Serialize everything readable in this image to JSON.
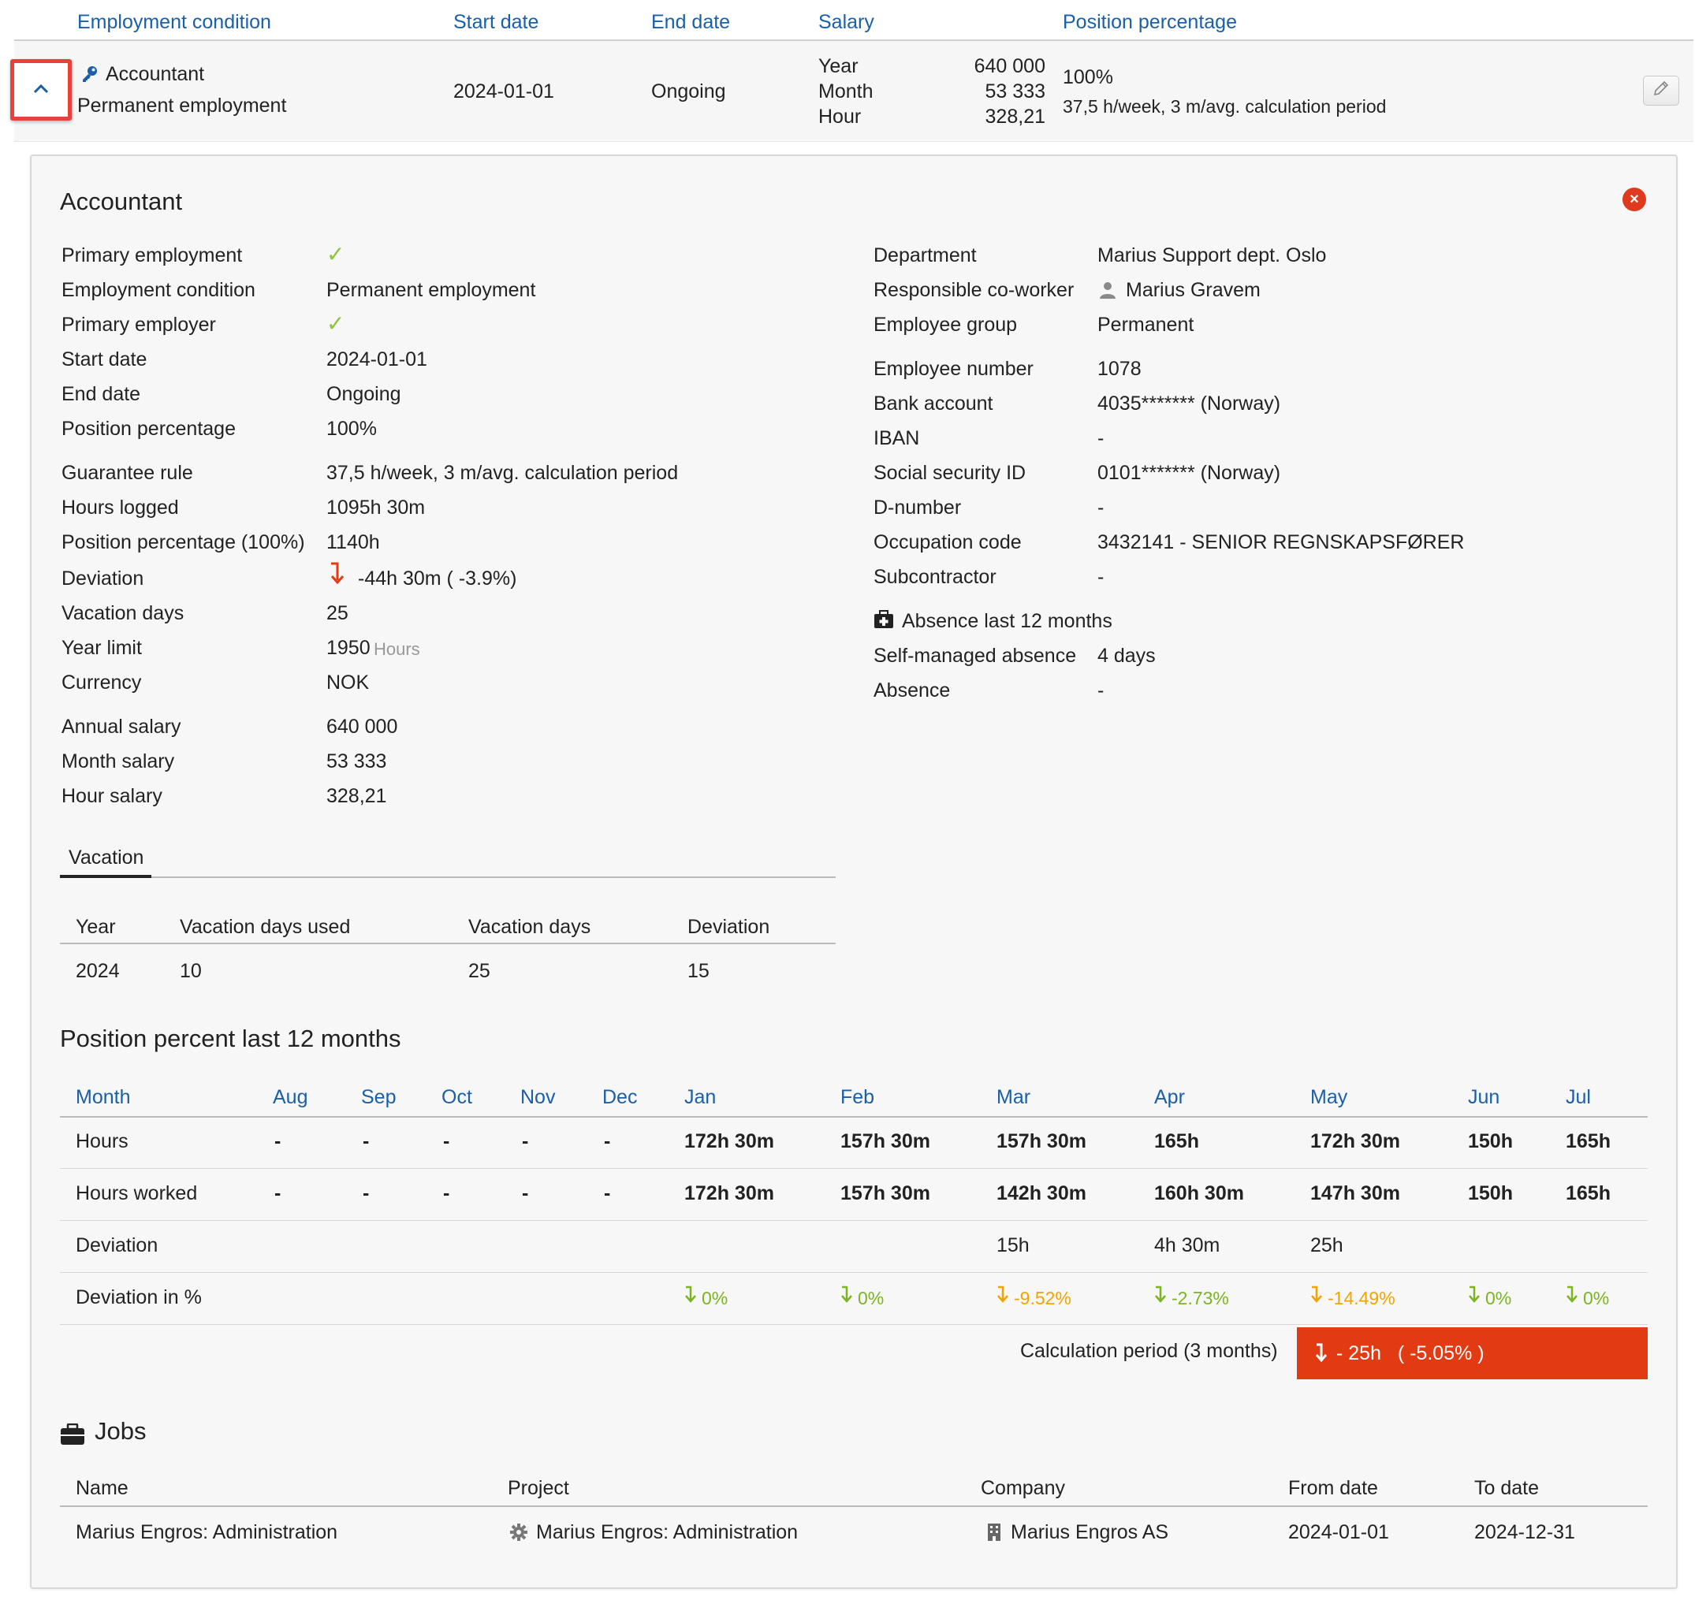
{
  "header": {
    "col_condition": "Employment condition",
    "col_start": "Start date",
    "col_end": "End date",
    "col_salary": "Salary",
    "col_position": "Position percentage"
  },
  "row": {
    "title": "Accountant",
    "subtitle": "Permanent employment",
    "start": "2024-01-01",
    "end": "Ongoing",
    "salary_year_label": "Year",
    "salary_month_label": "Month",
    "salary_hour_label": "Hour",
    "salary_year": "640 000",
    "salary_month": "53 333",
    "salary_hour": "328,21",
    "position": "100%",
    "guarantee": "37,5 h/week, 3 m/avg. calculation period"
  },
  "panel": {
    "title": "Accountant",
    "left": [
      {
        "label": "Primary employment",
        "value": "✓"
      },
      {
        "label": "Employment condition",
        "value": "Permanent employment"
      },
      {
        "label": "Primary employer",
        "value": "✓"
      },
      {
        "label": "Start date",
        "value": "2024-01-01"
      },
      {
        "label": "End date",
        "value": "Ongoing"
      },
      {
        "label": "Position percentage",
        "value": "100%"
      },
      {
        "label": "Guarantee rule",
        "value": "37,5 h/week, 3 m/avg. calculation period"
      },
      {
        "label": "Hours logged",
        "value": "1095h 30m"
      },
      {
        "label": "Position percentage (100%)",
        "value": "1140h"
      },
      {
        "label": "Deviation",
        "value": "-44h 30m ( -3.9%)"
      },
      {
        "label": "Vacation days",
        "value": "25"
      },
      {
        "label": "Year limit",
        "value": "1950"
      },
      {
        "label": "Currency",
        "value": "NOK"
      },
      {
        "label": "Annual salary",
        "value": "640 000"
      },
      {
        "label": "Month salary",
        "value": "53 333"
      },
      {
        "label": "Hour salary",
        "value": "328,21"
      }
    ],
    "year_limit_unit": "Hours",
    "right": [
      {
        "label": "Department",
        "value": "Marius Support dept. Oslo"
      },
      {
        "label": "Responsible co-worker",
        "value": "Marius Gravem"
      },
      {
        "label": "Employee group",
        "value": "Permanent"
      },
      {
        "label": "Employee number",
        "value": "1078"
      },
      {
        "label": "Bank account",
        "value": "4035******* (Norway)"
      },
      {
        "label": "IBAN",
        "value": "-"
      },
      {
        "label": "Social security ID",
        "value": "0101******* (Norway)"
      },
      {
        "label": "D-number",
        "value": "-"
      },
      {
        "label": "Occupation code",
        "value": "3432141 - SENIOR REGNSKAPSFØRER"
      },
      {
        "label": "Subcontractor",
        "value": "-"
      }
    ],
    "absence_title": "Absence last 12 months",
    "absence": [
      {
        "label": "Self-managed absence",
        "value": "4 days"
      },
      {
        "label": "Absence",
        "value": "-"
      }
    ]
  },
  "vacation": {
    "tab": "Vacation",
    "headers": [
      "Year",
      "Vacation days used",
      "Vacation days",
      "Deviation"
    ],
    "rows": [
      [
        "2024",
        "10",
        "25",
        "15"
      ]
    ]
  },
  "position_table": {
    "title": "Position percent last 12 months",
    "month_label": "Month",
    "months": [
      "Aug",
      "Sep",
      "Oct",
      "Nov",
      "Dec",
      "Jan",
      "Feb",
      "Mar",
      "Apr",
      "May",
      "Jun",
      "Jul"
    ],
    "hours_label": "Hours",
    "hours": [
      "-",
      "-",
      "-",
      "-",
      "-",
      "172h 30m",
      "157h 30m",
      "157h 30m",
      "165h",
      "172h 30m",
      "150h",
      "165h"
    ],
    "worked_label": "Hours worked",
    "worked": [
      "-",
      "-",
      "-",
      "-",
      "-",
      "172h 30m",
      "157h 30m",
      "142h 30m",
      "160h 30m",
      "147h 30m",
      "150h",
      "165h"
    ],
    "deviation_label": "Deviation",
    "deviation": [
      "",
      "",
      "",
      "",
      "",
      "",
      "",
      "15h",
      "4h 30m",
      "25h",
      "",
      ""
    ],
    "deviation_pct_label": "Deviation in %",
    "deviation_pct": [
      "",
      "",
      "",
      "",
      "",
      "0%",
      "0%",
      "-9.52%",
      "-2.73%",
      "-14.49%",
      "0%",
      "0%"
    ],
    "deviation_pct_colors": [
      "",
      "",
      "",
      "",
      "",
      "green",
      "green",
      "orange",
      "green",
      "orange",
      "green",
      "green"
    ],
    "calc_label": "Calculation period (3 months)",
    "calc_value": "- 25h   ( -5.05% )"
  },
  "jobs": {
    "title": "Jobs",
    "headers": [
      "Name",
      "Project",
      "Company",
      "From date",
      "To date"
    ],
    "rows": [
      [
        "Marius Engros: Administration",
        "Marius Engros: Administration",
        "Marius Engros AS",
        "2024-01-01",
        "2024-12-31"
      ]
    ]
  },
  "colors": {
    "accent_blue": "#1a5fa8",
    "alert_red": "#e23a12",
    "ok_green": "#7ab521",
    "warn_orange": "#f0a400",
    "highlight_border": "#e8413c"
  }
}
